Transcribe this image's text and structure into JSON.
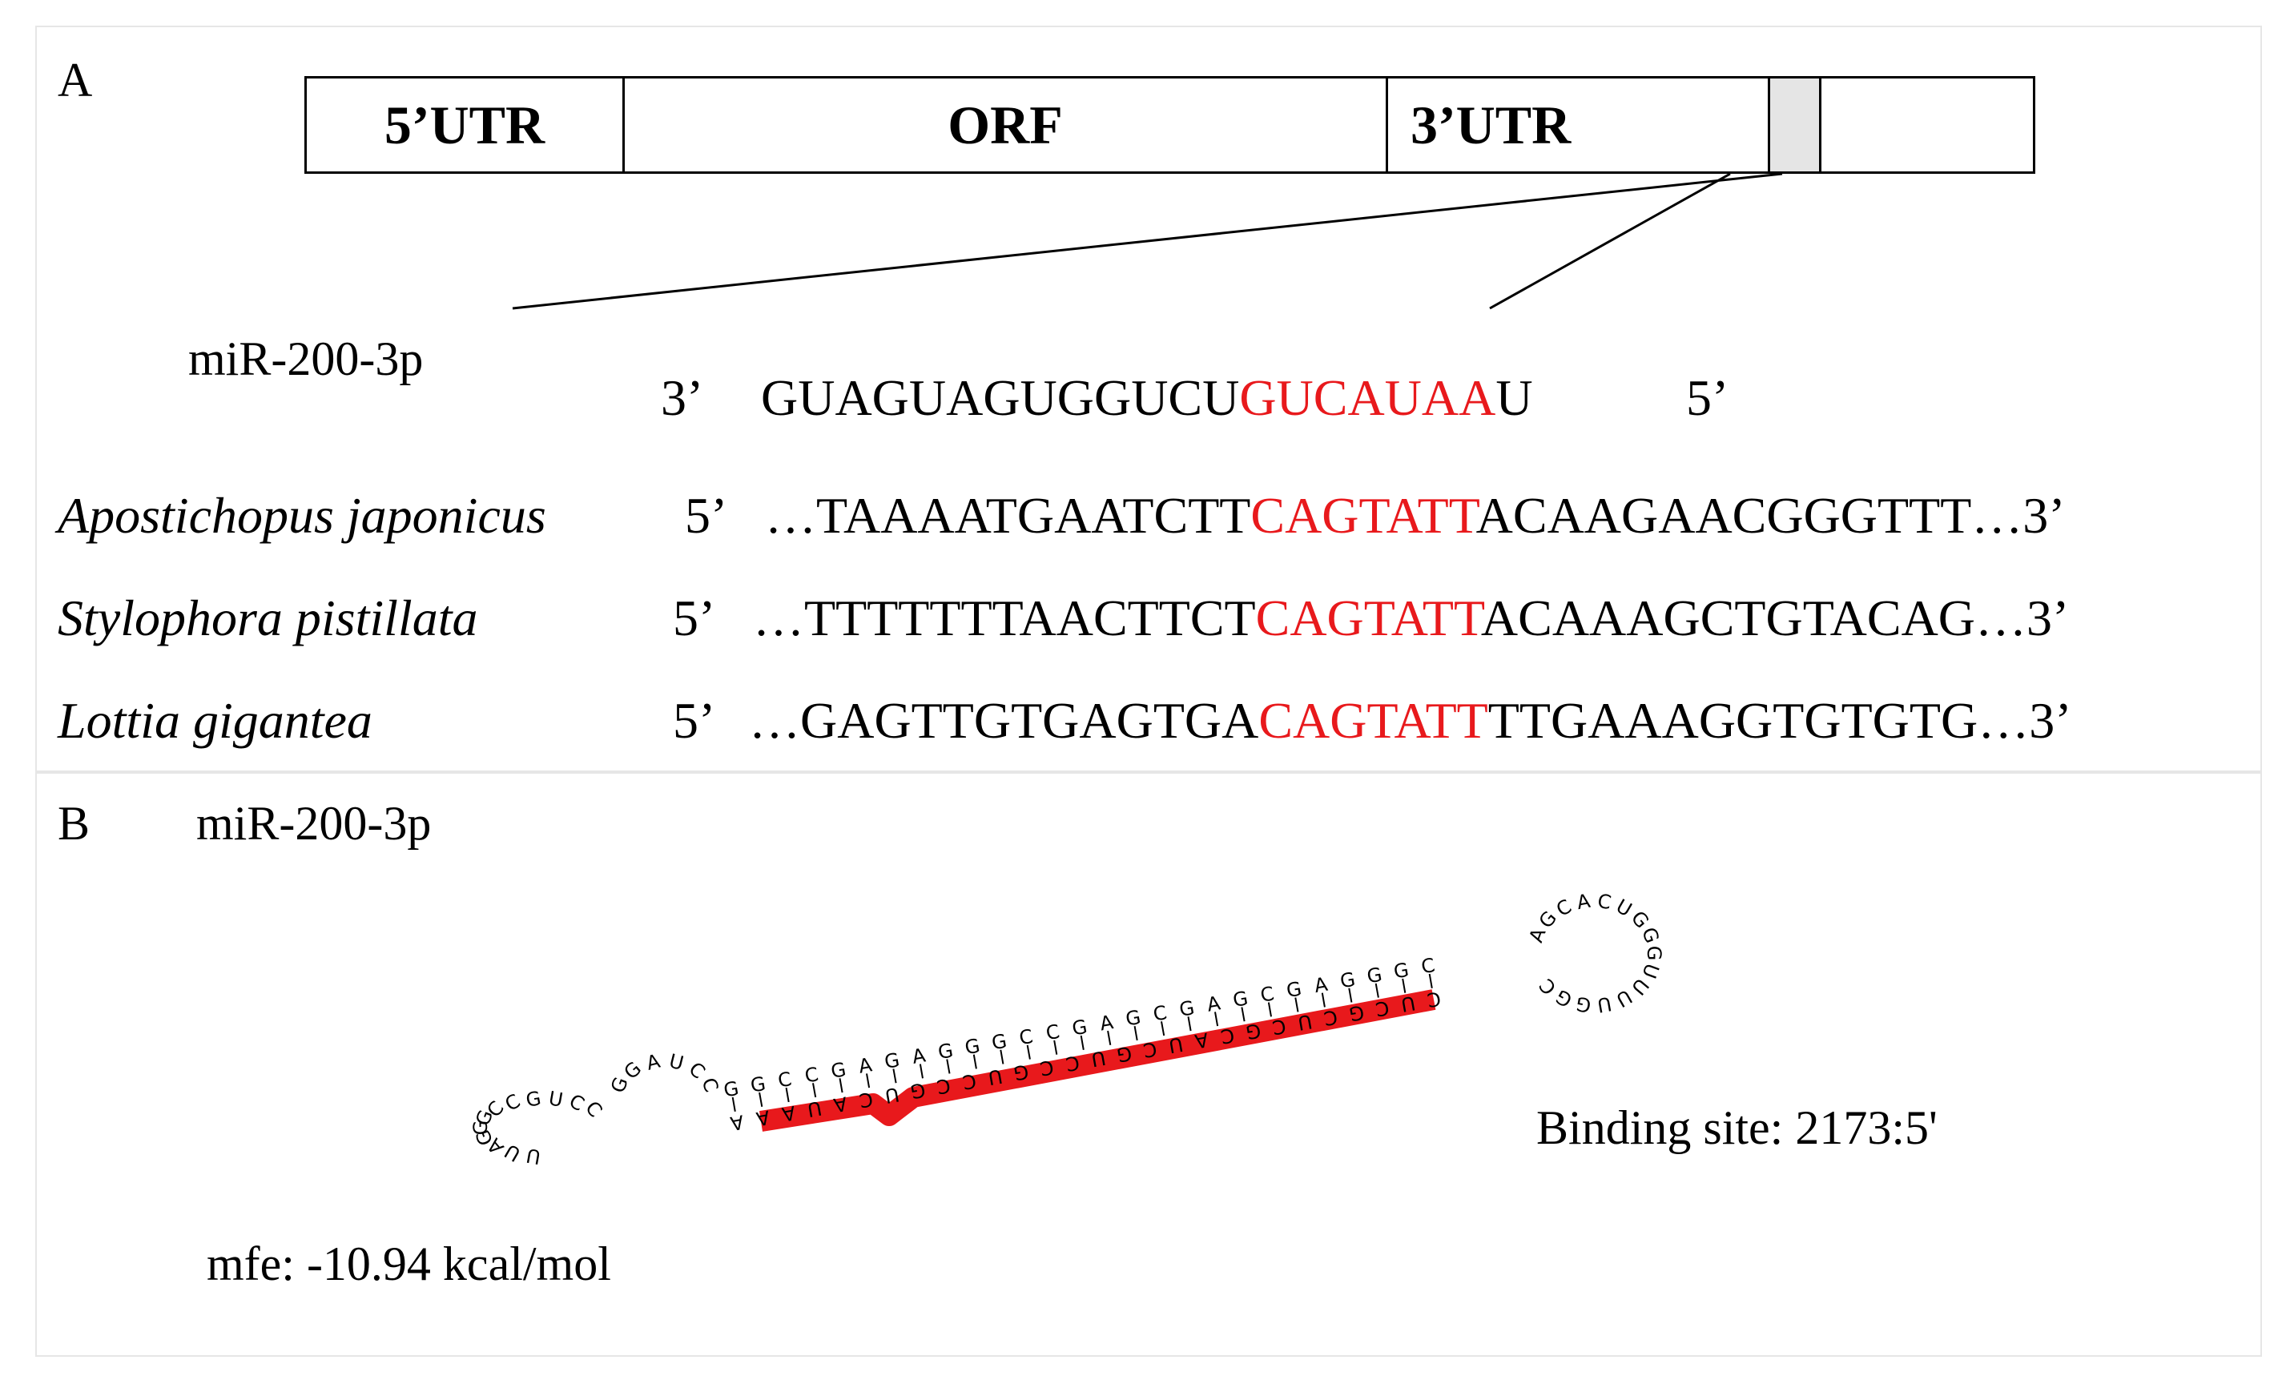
{
  "panel_a": {
    "label": "A",
    "gene_segments": [
      "5’UTR",
      "ORF",
      "3’UTR",
      ""
    ],
    "mirna": {
      "name": "miR-200-3p",
      "end_left": "3’",
      "seq_pre": "GUAGUAGUGGUCU",
      "seq_seed": "GUCAUAA",
      "seq_post": "U",
      "end_right": "5’"
    },
    "targets": [
      {
        "species": "Apostichopus japonicus",
        "end_left": "5’",
        "pre": "…TAAAATGAATCTT",
        "seed": "CAGTATT",
        "post": "ACAAGAACGGGTTT…3’"
      },
      {
        "species": "Stylophora pistillata",
        "end_left": "5’",
        "pre": "…TTTTTTTAACTTCT",
        "seed": "CAGTATT",
        "post": "ACAAAGCTGTACAG…3’"
      },
      {
        "species": "Lottia gigantea",
        "end_left": "5’",
        "pre": "…GAGTTGTGAGTGA",
        "seed": "CAGTATT",
        "post": "TTGAAAGGTGTGTG…3’"
      }
    ]
  },
  "panel_b": {
    "label": "B",
    "mirna_name": "miR-200-3p",
    "binding_site": "Binding site: 2173:5'",
    "mfe": "mfe: -10.94 kcal/mol",
    "structure": {
      "highlight_color": "#e8191c",
      "loop_left": [
        "U",
        "U",
        "A",
        "G",
        "G",
        "G",
        "C",
        "C",
        "G",
        "U",
        "C",
        "C"
      ],
      "bulge_mid": [
        "G",
        "G",
        "A",
        "U",
        "C",
        "C"
      ],
      "stem_top": [
        "G",
        "G",
        "C",
        "C",
        "G",
        "A",
        "G",
        "A",
        "G",
        "G",
        "G",
        "C",
        "C",
        "G",
        "A",
        "G",
        "C",
        "G",
        "A",
        "G",
        "C",
        "G",
        "A",
        "G",
        "G",
        "G",
        "C"
      ],
      "stem_bottom": [
        "A",
        "A",
        "A",
        "U",
        "A",
        "C",
        "U",
        "G",
        "C",
        "C",
        "U",
        "G",
        "C",
        "C",
        "U",
        "G",
        "C",
        "U",
        "A",
        "C",
        "G",
        "C",
        "U",
        "C",
        "G",
        "C",
        "U",
        "C"
      ],
      "loop_right": [
        "C",
        "G",
        "G",
        "U",
        "U",
        "U",
        "U",
        "G",
        "G",
        "G",
        "U",
        "C",
        "A",
        "C",
        "G",
        "A"
      ]
    }
  }
}
